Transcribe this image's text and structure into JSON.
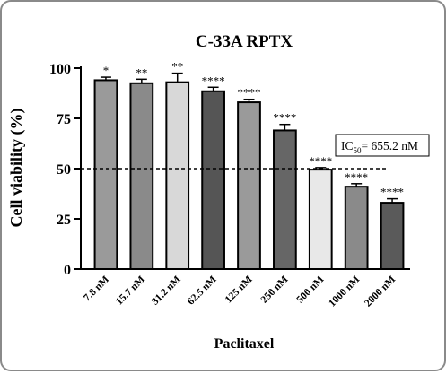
{
  "chart_data": {
    "type": "bar",
    "title": "C-33A RPTX",
    "xlabel": "Paclitaxel",
    "ylabel": "Cell viability (%)",
    "ylim": [
      0,
      100
    ],
    "yticks": [
      "0",
      "25",
      "50",
      "75",
      "100"
    ],
    "categories": [
      "7.8 nM",
      "15.7 nM",
      "31.2 nM",
      "62.5 nM",
      "125 nM",
      "250 nM",
      "500 nM",
      "1000 nM",
      "2000 nM"
    ],
    "values": [
      94,
      92.5,
      93,
      88.5,
      83,
      69,
      49.5,
      41,
      33
    ],
    "errors": [
      1.5,
      2,
      4.5,
      2,
      1.5,
      3,
      1,
      1.5,
      2
    ],
    "significance": [
      "*",
      "**",
      "**",
      "****",
      "****",
      "****",
      "****",
      "****",
      "****"
    ],
    "bar_colors": [
      "#9a9a9a",
      "#8a8a8a",
      "#d8d8d8",
      "#555555",
      "#9a9a9a",
      "#666666",
      "#e8e8e8",
      "#8a8a8a",
      "#5a5a5a"
    ],
    "reference_line": 50,
    "annotation": {
      "prefix": "IC",
      "subscript": "50",
      "suffix": "= 655.2 nM"
    },
    "grid": false
  }
}
